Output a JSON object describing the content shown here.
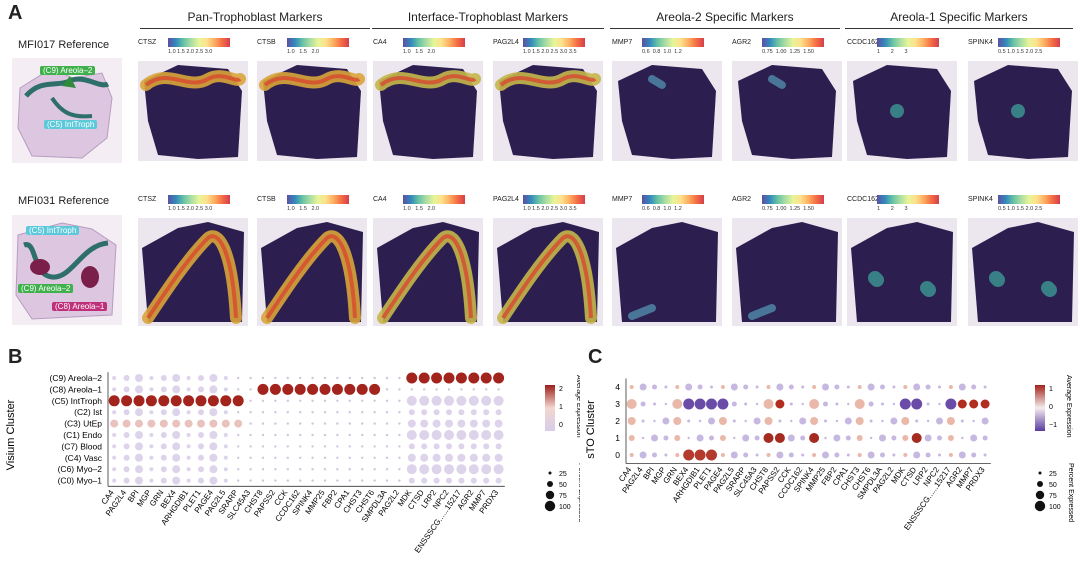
{
  "panel_a": {
    "letter": "A",
    "groups": [
      {
        "title": "Pan-Trophoblast Markers",
        "genes": [
          "CTSZ",
          "CTSB"
        ]
      },
      {
        "title": "Interface-Trophoblast Markers",
        "genes": [
          "CA4",
          "PAG2L4"
        ]
      },
      {
        "title": "Areola-2 Specific Markers",
        "genes": [
          "MMP7",
          "AGR2"
        ]
      },
      {
        "title": "Areola-1 Specific Markers",
        "genes": [
          "CCDC162",
          "SPINK4"
        ]
      }
    ],
    "rows": [
      {
        "reference": "MFI017 Reference",
        "labels": [
          "(C9) Areola–2",
          "(C5) IntTroph"
        ]
      },
      {
        "reference": "MFI031 Reference",
        "labels": [
          "(C5) IntTroph",
          "(C9) Areola–2",
          "(C8) Areola–1"
        ]
      }
    ],
    "colorbar_ticks": [
      "1.0 1.5 2.0 2.5 3.0",
      "1.0   1.5   2.0",
      "1.0   1.5   2.0",
      "1.0 1.5 2.0 2.5 3.0 3.5",
      "0.6  0.8  1.0  1.2",
      "0.75  1.00  1.25  1.50",
      "1       2       3",
      "0.5 1.0 1.5 2.0 2.5"
    ],
    "colors": {
      "low": "#3b2a63",
      "high": "#e2492f",
      "mid": "#8cc63f"
    }
  },
  "panel_b": {
    "letter": "B",
    "y_title": "Visium Cluster",
    "legend_expr_title": "Average Expression",
    "legend_pct_title": "Percent Expressed",
    "legend_expr_ticks": [
      "2",
      "1",
      "0"
    ],
    "legend_pct_ticks": [
      "25",
      "50",
      "75",
      "100"
    ],
    "clusters": [
      "(C9) Areola–2",
      "(C8) Areola–1",
      "(C5) IntTroph",
      "(C2) Ist",
      "(C3) UtEp",
      "(C1) Endo",
      "(C7) Blood",
      "(C4) Vasc",
      "(C6) Myo–2",
      "(C0) Myo–1"
    ],
    "genes": [
      "CA4",
      "PAG2L4",
      "BPI",
      "MGP",
      "GRN",
      "BEX4",
      "ARHGDIB1",
      "PLET1",
      "PAGE4",
      "PAG2L5",
      "SRARP",
      "SLC45A3",
      "CHST8",
      "PAPSS2",
      "CCK",
      "CCDC162",
      "SPINK4",
      "MMP25",
      "FBP2",
      "CPA1",
      "CHST3",
      "CHST6",
      "SMPDL3A",
      "PAG2L2",
      "MDK",
      "CTSD",
      "LRP2",
      "NPC2",
      "ENSSSCG......15217",
      "AGR2",
      "MMP7",
      "PRDX3"
    ]
  },
  "panel_c": {
    "letter": "C",
    "y_title": "sTO Cluster",
    "legend_expr_title": "Average Expression",
    "legend_pct_title": "Percent Expressed",
    "legend_expr_ticks": [
      "1",
      "0",
      "−1"
    ],
    "legend_pct_ticks": [
      "25",
      "50",
      "75",
      "100"
    ],
    "clusters": [
      "4",
      "3",
      "2",
      "1",
      "0"
    ],
    "genes": [
      "CA4",
      "PAG2L4",
      "BPI",
      "MGP",
      "GRN",
      "BEX4",
      "ARHGDIB1",
      "PLET1",
      "PAGE4",
      "PAG2L5",
      "SRARP",
      "SLC45A3",
      "CHST8",
      "PAPSS2",
      "CCK",
      "CCDC162",
      "SPINK4",
      "MMP25",
      "FBP2",
      "CPA1",
      "CHST3",
      "CHST6",
      "SMPDL3A",
      "PAG2L2",
      "MDK",
      "CTSD",
      "LRP2",
      "NPC2",
      "ENSSSCG......15217",
      "AGR2",
      "MMP7",
      "PRDX3"
    ]
  }
}
